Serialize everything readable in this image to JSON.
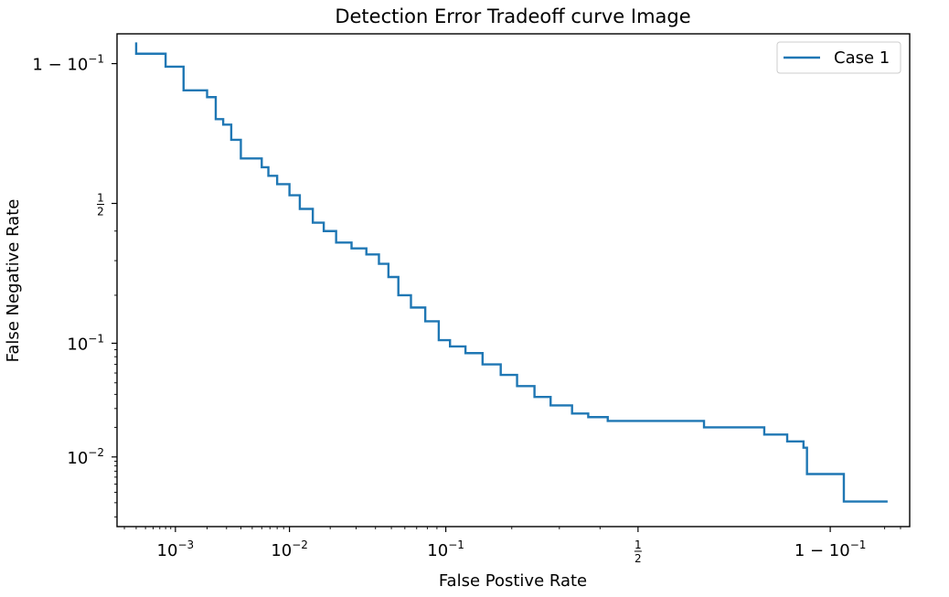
{
  "chart_data": {
    "type": "line",
    "title": "Detection Error Tradeoff curve Image",
    "xlabel": "False Postive Rate",
    "ylabel": "False Negative Rate",
    "scale": "normal-deviate (probit)",
    "xlim": [
      0.00025,
      0.965
    ],
    "ylim": [
      0.0015,
      0.94
    ],
    "grid": false,
    "legend_position": "upper right",
    "x_ticks": [
      {
        "value": 0.001,
        "label": "10",
        "exp": "−3"
      },
      {
        "value": 0.01,
        "label": "10",
        "exp": "−2"
      },
      {
        "value": 0.1,
        "label": "10",
        "exp": "−1"
      },
      {
        "value": 0.5,
        "frac": [
          "1",
          "2"
        ]
      },
      {
        "value": 0.9,
        "label": "1 − 10",
        "exp": "−1"
      }
    ],
    "y_ticks": [
      {
        "value": 0.01,
        "label": "10",
        "exp": "−2"
      },
      {
        "value": 0.1,
        "label": "10",
        "exp": "−1"
      },
      {
        "value": 0.5,
        "frac": [
          "1",
          "2"
        ]
      },
      {
        "value": 0.9,
        "label": "1 − 10",
        "exp": "−1"
      }
    ],
    "series": [
      {
        "name": "Case 1",
        "color": "#1f77b4",
        "x": [
          0.0004,
          0.0004,
          0.0008,
          0.0008,
          0.0012,
          0.0012,
          0.002,
          0.002,
          0.002,
          0.0024,
          0.0024,
          0.0028,
          0.0028,
          0.0033,
          0.0033,
          0.004,
          0.004,
          0.006,
          0.006,
          0.0068,
          0.0068,
          0.008,
          0.008,
          0.01,
          0.01,
          0.012,
          0.012,
          0.015,
          0.015,
          0.018,
          0.018,
          0.022,
          0.022,
          0.028,
          0.028,
          0.035,
          0.035,
          0.042,
          0.042,
          0.048,
          0.048,
          0.055,
          0.055,
          0.065,
          0.065,
          0.078,
          0.078,
          0.092,
          0.092,
          0.105,
          0.105,
          0.125,
          0.125,
          0.15,
          0.15,
          0.18,
          0.18,
          0.21,
          0.21,
          0.245,
          0.245,
          0.28,
          0.28,
          0.33,
          0.33,
          0.37,
          0.37,
          0.42,
          0.42,
          0.67,
          0.67,
          0.8,
          0.8,
          0.84,
          0.84,
          0.865,
          0.865,
          0.87,
          0.87,
          0.915,
          0.915,
          0.952
        ],
        "y": [
          0.93,
          0.915,
          0.915,
          0.895,
          0.895,
          0.85,
          0.85,
          0.85,
          0.835,
          0.835,
          0.78,
          0.78,
          0.765,
          0.765,
          0.72,
          0.72,
          0.66,
          0.66,
          0.63,
          0.63,
          0.6,
          0.6,
          0.57,
          0.57,
          0.53,
          0.53,
          0.48,
          0.48,
          0.43,
          0.43,
          0.4,
          0.4,
          0.36,
          0.36,
          0.34,
          0.34,
          0.32,
          0.32,
          0.29,
          0.29,
          0.25,
          0.25,
          0.2,
          0.2,
          0.17,
          0.17,
          0.14,
          0.14,
          0.105,
          0.105,
          0.095,
          0.095,
          0.085,
          0.085,
          0.07,
          0.07,
          0.058,
          0.058,
          0.047,
          0.047,
          0.038,
          0.038,
          0.032,
          0.032,
          0.027,
          0.027,
          0.025,
          0.025,
          0.023,
          0.023,
          0.02,
          0.02,
          0.017,
          0.017,
          0.0145,
          0.0145,
          0.0125,
          0.0125,
          0.0065,
          0.0065,
          0.0031,
          0.0031
        ]
      }
    ]
  }
}
